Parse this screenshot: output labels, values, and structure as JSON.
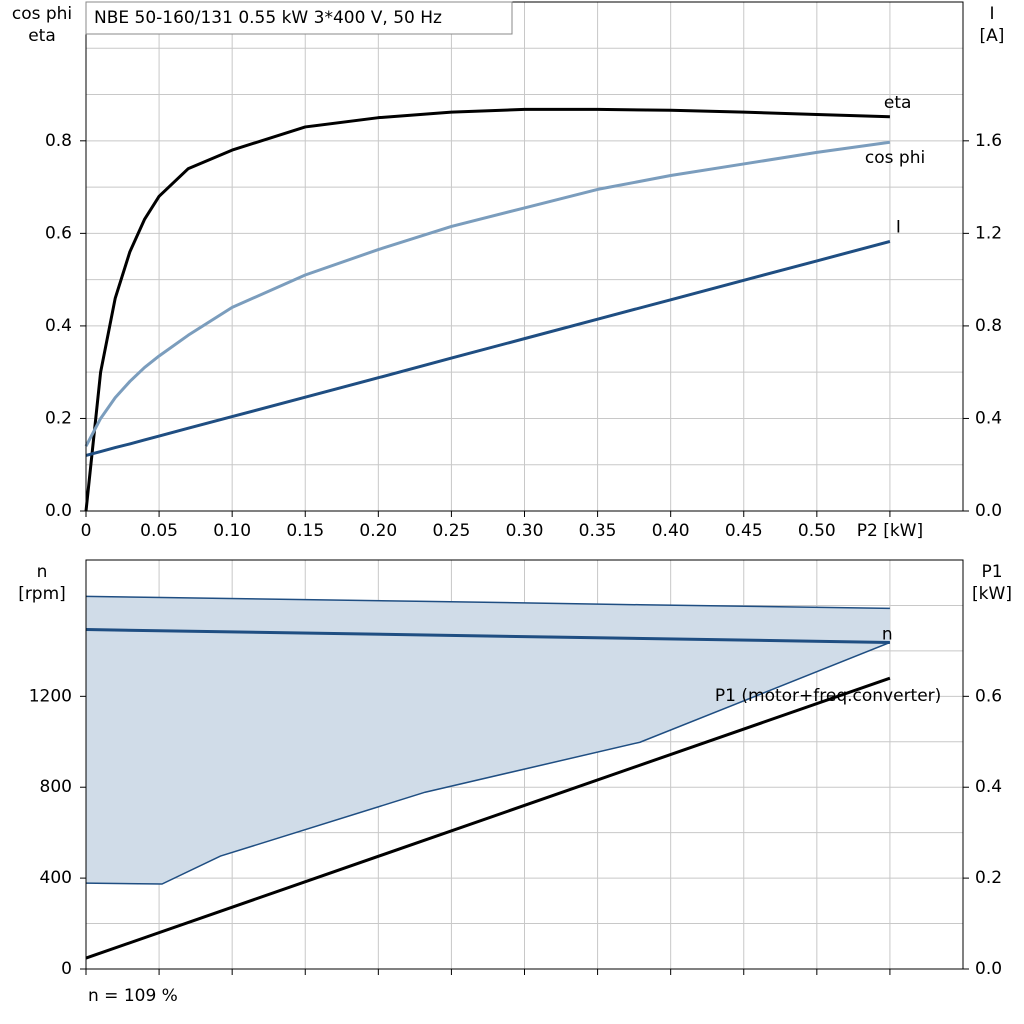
{
  "chart_data": [
    {
      "type": "line",
      "title": "NBE 50-160/131   0.55 kW   3*400 V, 50 Hz",
      "ylabel": [
        "cos phi",
        "eta"
      ],
      "y2label": [
        "I",
        "[A]"
      ],
      "x": [
        0,
        0.01,
        0.02,
        0.03,
        0.04,
        0.05,
        0.07,
        0.1,
        0.15,
        0.2,
        0.25,
        0.3,
        0.35,
        0.4,
        0.45,
        0.5,
        0.55
      ],
      "series": [
        {
          "name": "eta",
          "color": "#000000",
          "axis": "y",
          "values": [
            0,
            0.3,
            0.46,
            0.56,
            0.63,
            0.68,
            0.74,
            0.78,
            0.83,
            0.85,
            0.862,
            0.868,
            0.868,
            0.866,
            0.862,
            0.857,
            0.852
          ]
        },
        {
          "name": "cos phi",
          "color": "#7b9dbd",
          "axis": "y",
          "values": [
            0.14,
            0.2,
            0.245,
            0.28,
            0.31,
            0.335,
            0.38,
            0.44,
            0.51,
            0.565,
            0.615,
            0.655,
            0.695,
            0.725,
            0.75,
            0.775,
            0.797
          ]
        },
        {
          "name": "I",
          "color": "#1f4e82",
          "axis": "y2",
          "values": [
            0.24,
            0.257,
            0.274,
            0.29,
            0.307,
            0.324,
            0.358,
            0.408,
            0.492,
            0.576,
            0.661,
            0.745,
            0.829,
            0.913,
            0.997,
            1.081,
            1.165
          ]
        }
      ],
      "xlim": [
        0,
        0.6
      ],
      "xticks": [
        0,
        0.05,
        {
          "value": 0.1,
          "label": "0.10"
        },
        0.15,
        {
          "value": 0.2,
          "label": "0.20"
        },
        0.25,
        {
          "value": 0.3,
          "label": "0.30"
        },
        0.35,
        {
          "value": 0.4,
          "label": "0.40"
        },
        0.45,
        {
          "value": 0.5,
          "label": "0.50"
        },
        {
          "value": 0.55,
          "label": "P2 [kW]"
        }
      ],
      "show_xtick_labels": true,
      "ylim": [
        0,
        1.1
      ],
      "yticks": [
        {
          "value": 0,
          "label": "0.0"
        },
        0.2,
        0.4,
        0.6,
        0.8
      ],
      "minor_yticks": [
        0.1,
        0.3,
        0.5,
        0.7,
        0.9,
        1.0
      ],
      "y2lim": [
        0,
        2.2
      ],
      "y2ticks": [
        {
          "value": 0,
          "label": "0.0"
        },
        0.4,
        0.8,
        1.2,
        1.6
      ],
      "grid": true
    },
    {
      "type": "line",
      "ylabel": [
        "n",
        "[rpm]"
      ],
      "y2label": [
        "P1",
        "[kW]"
      ],
      "x": [
        0,
        0.55
      ],
      "series": [
        {
          "name": "n",
          "color": "#1f4e82",
          "axis": "y",
          "values": [
            1494,
            1437
          ]
        },
        {
          "name": "P1 (motor+freq.converter)",
          "color": "#000000",
          "axis": "y2",
          "values": [
            0.024,
            0.64
          ]
        }
      ],
      "band": {
        "color": "#d0dce8",
        "x": [
          0,
          0.052,
          0.092,
          0.232,
          0.379,
          0.55
        ],
        "upper": [
          1640,
          1635,
          1631,
          1618,
          1603,
          1587
        ],
        "lower": [
          378,
          374,
          497,
          778,
          998,
          1437
        ]
      },
      "xlim": [
        0,
        0.6
      ],
      "xticks": [
        0,
        0.05,
        0.1,
        0.15,
        0.2,
        0.25,
        0.3,
        0.35,
        0.4,
        0.45,
        0.5,
        0.55
      ],
      "show_xtick_labels": false,
      "ylim": [
        0,
        1800
      ],
      "yticks": [
        0,
        400,
        800,
        1200
      ],
      "minor_yticks": [
        200,
        600,
        1000,
        1400,
        1600
      ],
      "y2lim": [
        0,
        0.9
      ],
      "y2ticks": [
        {
          "value": 0,
          "label": "0.0"
        },
        0.2,
        0.4,
        0.6
      ],
      "footnote": "n = 109 %",
      "grid": true
    }
  ]
}
